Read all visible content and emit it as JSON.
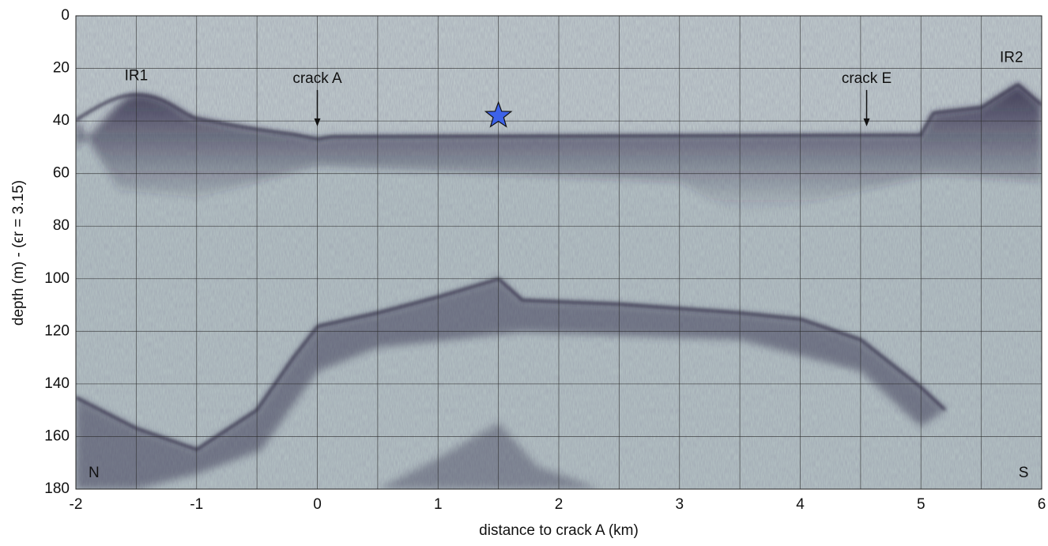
{
  "chart_data": {
    "type": "image",
    "xlabel": "distance to crack A (km)",
    "ylabel": "depth (m) - (ϵr = 3.15)",
    "xlim": [
      -2,
      6
    ],
    "xticks": [
      -2,
      -1,
      0,
      1,
      2,
      3,
      4,
      5,
      6
    ],
    "xgrid": [
      -1.5,
      -0.5,
      0.5,
      1.5,
      2.5,
      3.5,
      4.5,
      5.5
    ],
    "ylim": [
      0,
      180
    ],
    "yticks": [
      0,
      20,
      40,
      60,
      80,
      100,
      120,
      140,
      160,
      180
    ],
    "y_inverted": true,
    "grid": true,
    "annotations": [
      {
        "text": "IR1",
        "x": -1.5,
        "y": 23
      },
      {
        "text": "crack A",
        "x": 0,
        "y": 24,
        "arrow": true
      },
      {
        "text": "crack E",
        "x": 4.55,
        "y": 24,
        "arrow": true
      },
      {
        "text": "IR2",
        "x": 5.75,
        "y": 16
      },
      {
        "text": "N",
        "x": -1.85,
        "y": 174
      },
      {
        "text": "S",
        "x": 5.85,
        "y": 174
      }
    ],
    "markers": [
      {
        "x": 1.5,
        "y": 38,
        "color": "#3d62e8"
      }
    ]
  }
}
